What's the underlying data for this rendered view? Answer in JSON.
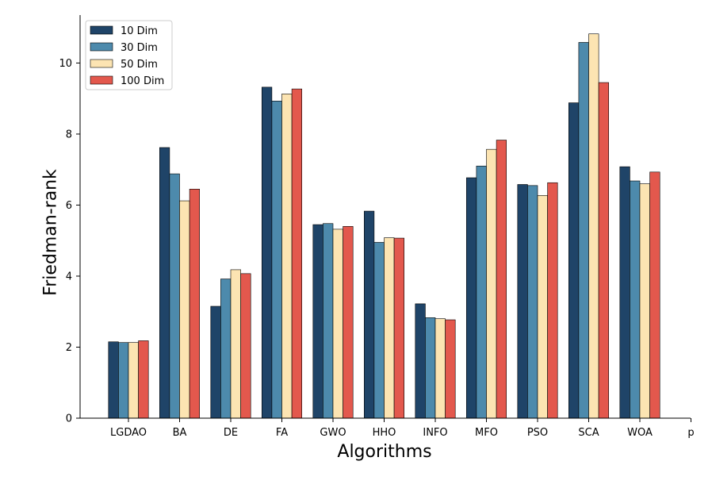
{
  "chart_data": {
    "type": "bar",
    "categories": [
      "LGDAO",
      "BA",
      "DE",
      "FA",
      "GWO",
      "HHO",
      "INFO",
      "MFO",
      "PSO",
      "SCA",
      "WOA",
      "p"
    ],
    "series": [
      {
        "name": "10 Dim",
        "color": "#1f4468",
        "values": [
          2.15,
          7.62,
          3.15,
          9.32,
          5.45,
          5.83,
          3.22,
          6.77,
          6.58,
          8.88,
          7.08,
          null
        ]
      },
      {
        "name": "30 Dim",
        "color": "#4d8aac",
        "values": [
          2.13,
          6.88,
          3.92,
          8.93,
          5.48,
          4.95,
          2.83,
          7.1,
          6.55,
          10.58,
          6.68,
          null
        ]
      },
      {
        "name": "50 Dim",
        "color": "#fce4b2",
        "values": [
          2.13,
          6.12,
          4.18,
          9.13,
          5.32,
          5.08,
          2.8,
          7.57,
          6.27,
          10.82,
          6.6,
          null
        ]
      },
      {
        "name": "100 Dim",
        "color": "#e3584d",
        "values": [
          2.18,
          6.45,
          4.07,
          9.27,
          5.4,
          5.07,
          2.77,
          7.83,
          6.63,
          9.45,
          6.93,
          null
        ]
      }
    ],
    "xlabel": "Algorithms",
    "ylabel": "Friedman-rank",
    "ylim": [
      0,
      11.35
    ],
    "yticks": [
      0,
      2,
      4,
      6,
      8,
      10
    ],
    "legend_position": "top-left",
    "grid": false
  }
}
